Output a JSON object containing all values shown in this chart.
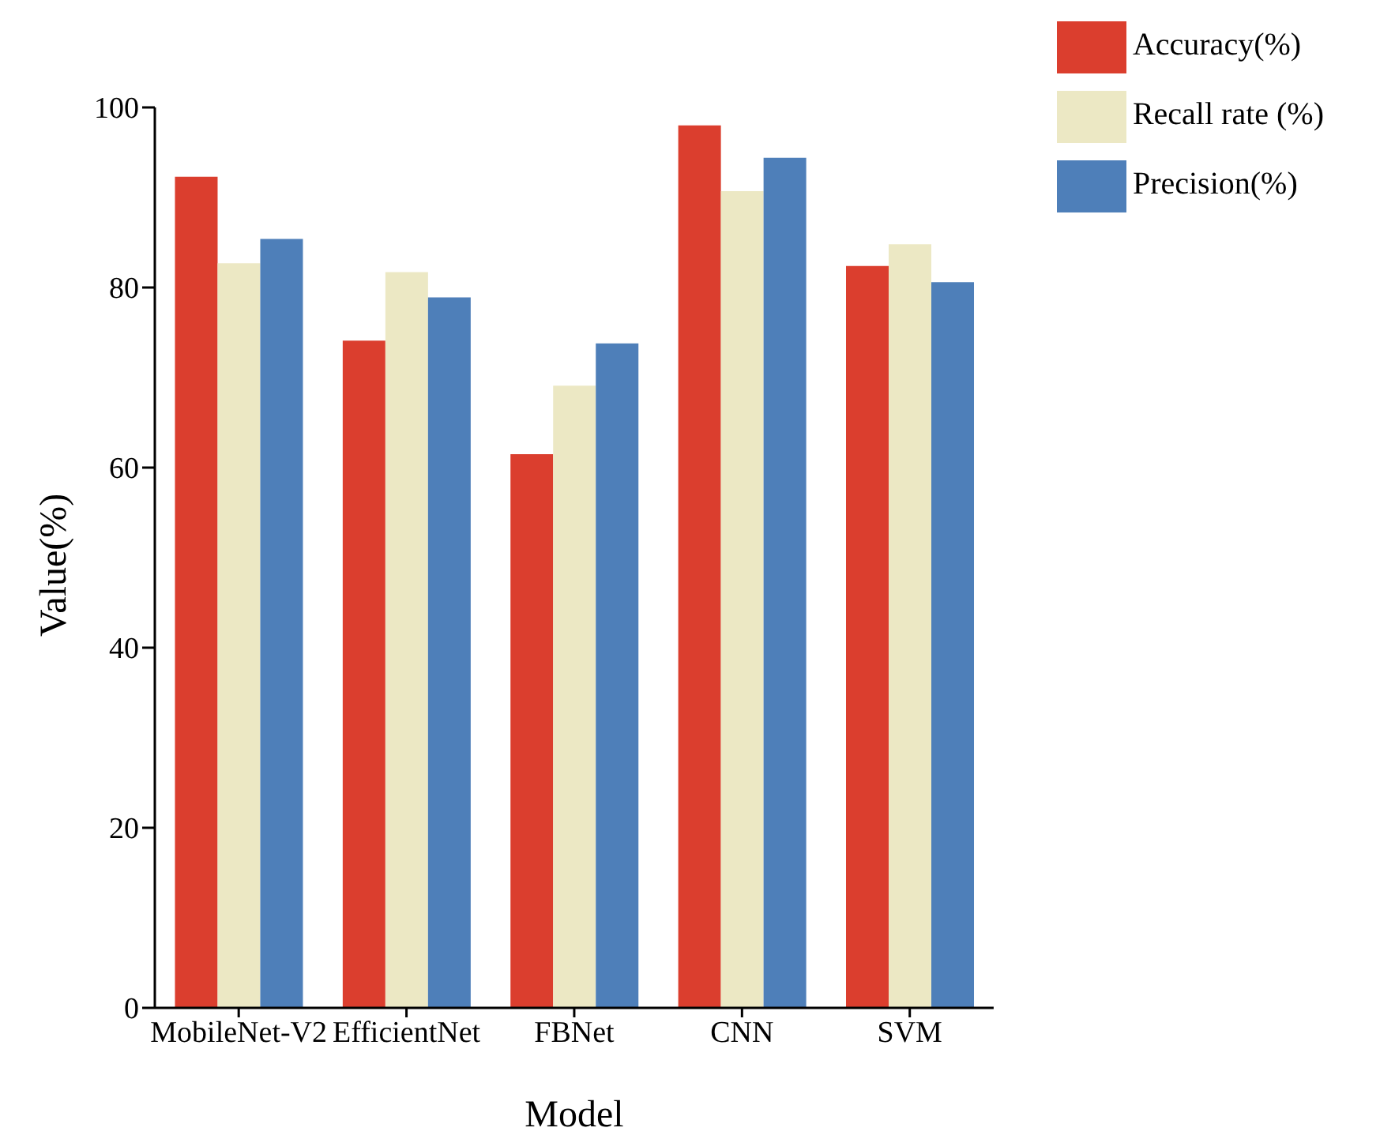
{
  "chart_data": {
    "type": "bar",
    "xlabel": "Model",
    "ylabel": "Value(%)",
    "categories": [
      "MobileNet-V2",
      "EfficientNet",
      "FBNet",
      "CNN",
      "SVM"
    ],
    "series": [
      {
        "name": "Accuracy(%)",
        "color": "#db3e2e",
        "values": [
          92.3,
          74.1,
          61.5,
          98.0,
          82.4
        ]
      },
      {
        "name": "Recall rate (%)",
        "color": "#ece8c4",
        "values": [
          82.7,
          81.7,
          69.1,
          90.7,
          84.8
        ]
      },
      {
        "name": "Precision(%)",
        "color": "#4e7fb9",
        "values": [
          85.4,
          78.9,
          73.8,
          94.4,
          80.6
        ]
      }
    ],
    "ylim": [
      0,
      100
    ],
    "yticks": [
      0,
      20,
      40,
      60,
      80,
      100
    ],
    "grid": false,
    "legend": "top right"
  }
}
